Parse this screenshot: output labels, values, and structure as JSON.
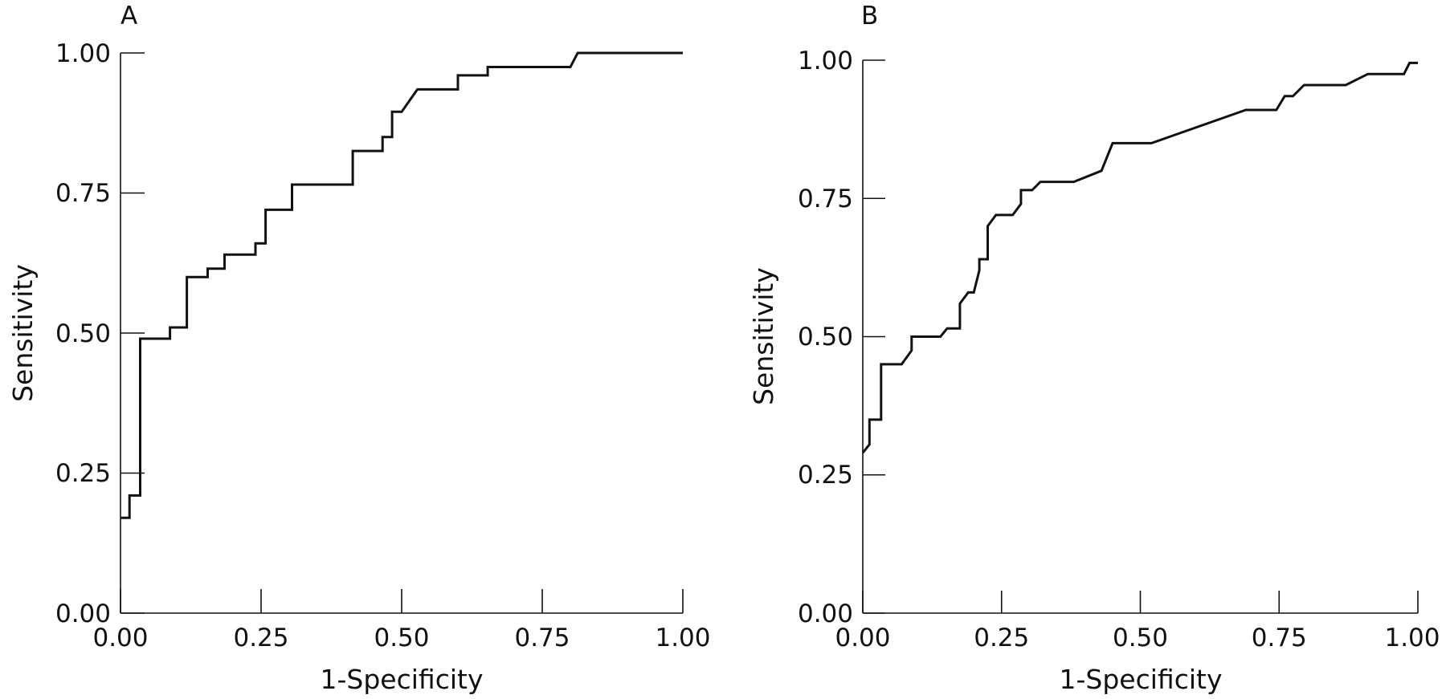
{
  "chart_data": [
    {
      "type": "line",
      "panel_label": "A",
      "xlabel": "1-Specificity",
      "ylabel": "Sensitivity",
      "xlim": [
        0,
        1
      ],
      "ylim": [
        0,
        1
      ],
      "x_ticks": [
        "0.00",
        "0.25",
        "0.50",
        "0.75",
        "1.00"
      ],
      "y_ticks": [
        "0.00",
        "0.25",
        "0.50",
        "0.75",
        "1.00"
      ],
      "grid": false,
      "legend": "none",
      "series": [
        {
          "color": "#111111",
          "x": [
            0,
            0.016,
            0.016,
            0.035,
            0.035,
            0.088,
            0.088,
            0.118,
            0.118,
            0.155,
            0.155,
            0.185,
            0.185,
            0.24,
            0.24,
            0.258,
            0.258,
            0.305,
            0.305,
            0.413,
            0.413,
            0.466,
            0.466,
            0.483,
            0.483,
            0.5,
            0.528,
            0.6,
            0.6,
            0.653,
            0.653,
            0.8,
            0.813,
            1.0
          ],
          "y": [
            0.17,
            0.17,
            0.21,
            0.21,
            0.49,
            0.49,
            0.51,
            0.51,
            0.6,
            0.6,
            0.615,
            0.615,
            0.64,
            0.64,
            0.66,
            0.66,
            0.72,
            0.72,
            0.765,
            0.765,
            0.825,
            0.825,
            0.85,
            0.85,
            0.895,
            0.895,
            0.935,
            0.935,
            0.96,
            0.96,
            0.975,
            0.975,
            1.0,
            1.0
          ]
        }
      ]
    },
    {
      "type": "line",
      "panel_label": "B",
      "xlabel": "1-Specificity",
      "ylabel": "Sensitivity",
      "xlim": [
        0,
        1
      ],
      "ylim": [
        0,
        1
      ],
      "x_ticks": [
        "0.00",
        "0.25",
        "0.50",
        "0.75",
        "1.00"
      ],
      "y_ticks": [
        "0.00",
        "0.25",
        "0.50",
        "0.75",
        "1.00"
      ],
      "grid": false,
      "legend": "none",
      "series": [
        {
          "color": "#111111",
          "x": [
            0,
            0.012,
            0.012,
            0.033,
            0.033,
            0.07,
            0.088,
            0.088,
            0.14,
            0.152,
            0.175,
            0.175,
            0.19,
            0.2,
            0.21,
            0.21,
            0.225,
            0.225,
            0.24,
            0.27,
            0.285,
            0.285,
            0.305,
            0.32,
            0.38,
            0.43,
            0.45,
            0.52,
            0.69,
            0.745,
            0.76,
            0.775,
            0.795,
            0.87,
            0.91,
            0.975,
            0.985,
            1.0
          ],
          "y": [
            0.29,
            0.305,
            0.35,
            0.35,
            0.45,
            0.45,
            0.475,
            0.5,
            0.5,
            0.515,
            0.515,
            0.56,
            0.58,
            0.58,
            0.62,
            0.64,
            0.64,
            0.7,
            0.72,
            0.72,
            0.74,
            0.765,
            0.765,
            0.78,
            0.78,
            0.8,
            0.85,
            0.85,
            0.91,
            0.91,
            0.935,
            0.935,
            0.955,
            0.955,
            0.975,
            0.975,
            0.995,
            0.995
          ]
        }
      ]
    }
  ]
}
